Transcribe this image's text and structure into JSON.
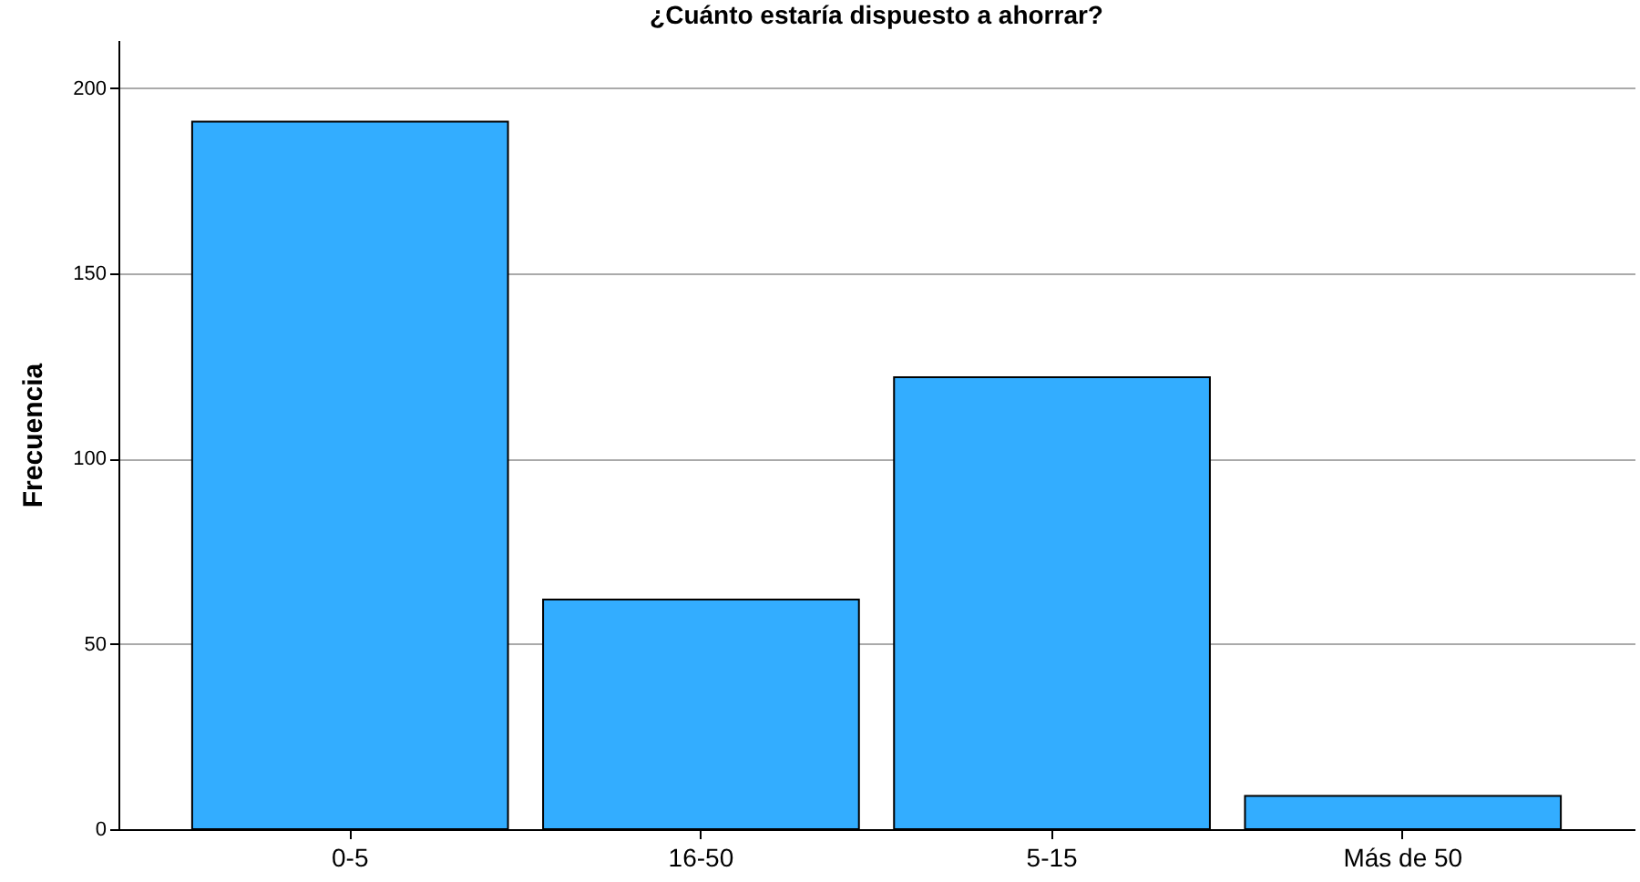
{
  "chart_data": {
    "type": "bar",
    "title": "¿Cuánto estaría dispuesto a ahorrar?",
    "ylabel": "Frecuencia",
    "categories": [
      "0-5",
      "16-50",
      "5-15",
      "Más de 50"
    ],
    "values": [
      191,
      62,
      122,
      9
    ],
    "color": "#33adff",
    "ylim": [
      0,
      213
    ],
    "yticks": [
      0,
      50,
      100,
      150,
      200
    ],
    "grid": "y"
  }
}
